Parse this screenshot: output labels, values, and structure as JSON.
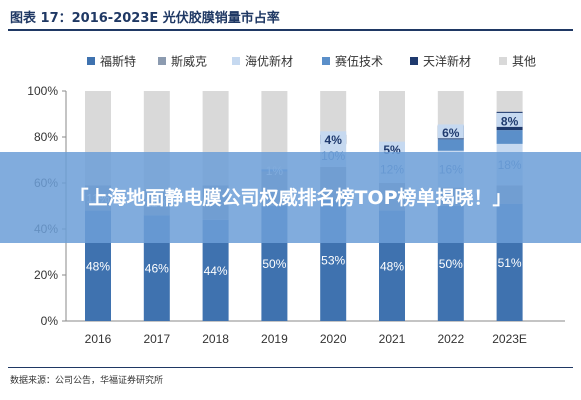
{
  "header": {
    "title": "图表 17：2016-2023E 光伏胶膜销量市占率"
  },
  "footer": {
    "source": "数据来源：公司公告，华福证券研究所"
  },
  "overlay": {
    "headline": "「上海地面静电膜公司权威排名榜TOP榜单揭晓！」"
  },
  "colors": {
    "福斯特": "#3f72af",
    "斯威克": "#8c9bb0",
    "海优新材": "#c6d9f0",
    "赛伍技术": "#5b8fc9",
    "天洋新材": "#1f3a6e",
    "其他": "#d9d9d9",
    "title": "#1f3864",
    "overlay": "#6c9ed7"
  },
  "chart_data": {
    "type": "bar",
    "stacked": true,
    "percent": true,
    "categories": [
      "2016",
      "2017",
      "2018",
      "2019",
      "2020",
      "2021",
      "2022",
      "2023E"
    ],
    "ylim": [
      0,
      100
    ],
    "yticks": [
      "0%",
      "20%",
      "40%",
      "60%",
      "80%",
      "100%"
    ],
    "legend_position": "top",
    "grid": false,
    "series": [
      {
        "name": "福斯特",
        "values": [
          48,
          46,
          44,
          50,
          53,
          48,
          50,
          51
        ]
      },
      {
        "name": "斯威克",
        "values": [
          11,
          11,
          15,
          15,
          14,
          12,
          8,
          8
        ]
      },
      {
        "name": "海优新材",
        "values": [
          0,
          0,
          0,
          0,
          10,
          12,
          16,
          18
        ]
      },
      {
        "name": "赛伍技术",
        "values": [
          0,
          0,
          0,
          1,
          0,
          0,
          5,
          6
        ]
      },
      {
        "name": "天洋新材",
        "values": [
          0,
          0,
          0,
          0,
          4,
          5,
          6,
          8
        ]
      },
      {
        "name": "其他",
        "values": [
          41,
          43,
          41,
          34,
          19,
          23,
          15,
          9
        ]
      }
    ],
    "data_labels": [
      {
        "category": "2016",
        "series": "福斯特",
        "text": "48%"
      },
      {
        "category": "2017",
        "series": "福斯特",
        "text": "46%"
      },
      {
        "category": "2018",
        "series": "福斯特",
        "text": "44%"
      },
      {
        "category": "2019",
        "series": "福斯特",
        "text": "50%"
      },
      {
        "category": "2020",
        "series": "福斯特",
        "text": "53%"
      },
      {
        "category": "2021",
        "series": "福斯特",
        "text": "48%"
      },
      {
        "category": "2022",
        "series": "福斯特",
        "text": "50%"
      },
      {
        "category": "2023E",
        "series": "福斯特",
        "text": "51%"
      },
      {
        "category": "2016",
        "series": "斯威克",
        "text": "11%"
      },
      {
        "category": "2017",
        "series": "斯威克",
        "text": "11%"
      },
      {
        "category": "2020",
        "series": "海优新材",
        "text": "10%"
      },
      {
        "category": "2021",
        "series": "海优新材",
        "text": "12%"
      },
      {
        "category": "2022",
        "series": "海优新材",
        "text": "16%"
      },
      {
        "category": "2023E",
        "series": "海优新材",
        "text": "18%"
      },
      {
        "category": "2019",
        "series": "赛伍技术",
        "text": "1%"
      },
      {
        "category": "2020",
        "series": "天洋新材",
        "text": "4%"
      },
      {
        "category": "2021",
        "series": "天洋新材",
        "text": "5%"
      },
      {
        "category": "2022",
        "series": "天洋新材",
        "text": "6%"
      },
      {
        "category": "2023E",
        "series": "天洋新材",
        "text": "8%"
      }
    ]
  }
}
